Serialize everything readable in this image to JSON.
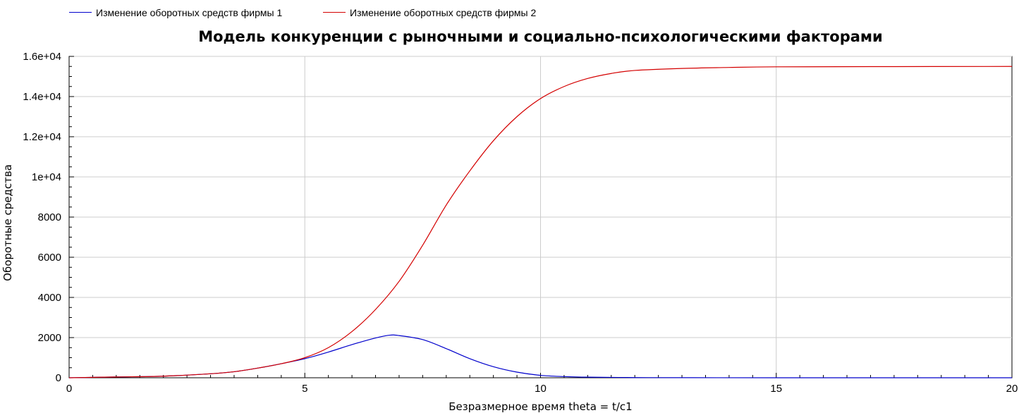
{
  "legend": {
    "items": [
      {
        "label": "Изменение оборотных средств фирмы 1",
        "color": "#0000cc"
      },
      {
        "label": "Изменение оборотных средств фирмы 2",
        "color": "#d40000"
      }
    ]
  },
  "chart_data": {
    "type": "line",
    "title": "Модель конкуренции с рыночными и социально-психологическими факторами",
    "xlabel": "Безразмерное время theta = t/c1",
    "ylabel": "Оборотные средства",
    "xlim": [
      0,
      20
    ],
    "ylim": [
      0,
      16000
    ],
    "grid": true,
    "legend_position": "top-left",
    "x_ticks": [
      0,
      5,
      10,
      15,
      20
    ],
    "x_tick_labels": [
      "0",
      "5",
      "10",
      "15",
      "20"
    ],
    "y_ticks": [
      0,
      2000,
      4000,
      6000,
      8000,
      10000,
      12000,
      14000,
      16000
    ],
    "y_tick_labels": [
      "0",
      "2000",
      "4000",
      "6000",
      "8000",
      "1e+04",
      "1.2e+04",
      "1.4e+04",
      "1.6e+04"
    ],
    "series": [
      {
        "name": "Изменение оборотных средств фирмы 1",
        "color": "#0000cc",
        "x": [
          0,
          1,
          2,
          3,
          3.5,
          4,
          4.5,
          5,
          5.5,
          6,
          6.5,
          6.8,
          7,
          7.5,
          8,
          8.5,
          9,
          9.5,
          10,
          10.5,
          11,
          12,
          13,
          15,
          20
        ],
        "y": [
          0,
          40,
          80,
          200,
          300,
          480,
          700,
          950,
          1280,
          1650,
          1980,
          2120,
          2100,
          1900,
          1450,
          950,
          550,
          280,
          120,
          60,
          30,
          10,
          5,
          0,
          0
        ]
      },
      {
        "name": "Изменение оборотных средств фирмы 2",
        "color": "#d40000",
        "x": [
          0,
          1,
          2,
          3,
          3.5,
          4,
          4.5,
          5,
          5.5,
          6,
          6.5,
          7,
          7.5,
          8,
          8.5,
          9,
          9.5,
          10,
          10.5,
          11,
          11.5,
          12,
          13,
          14,
          15,
          17,
          20
        ],
        "y": [
          0,
          40,
          80,
          200,
          300,
          480,
          700,
          1000,
          1500,
          2300,
          3400,
          4800,
          6600,
          8600,
          10300,
          11800,
          13000,
          13900,
          14500,
          14900,
          15150,
          15300,
          15400,
          15450,
          15480,
          15490,
          15500
        ]
      }
    ]
  }
}
